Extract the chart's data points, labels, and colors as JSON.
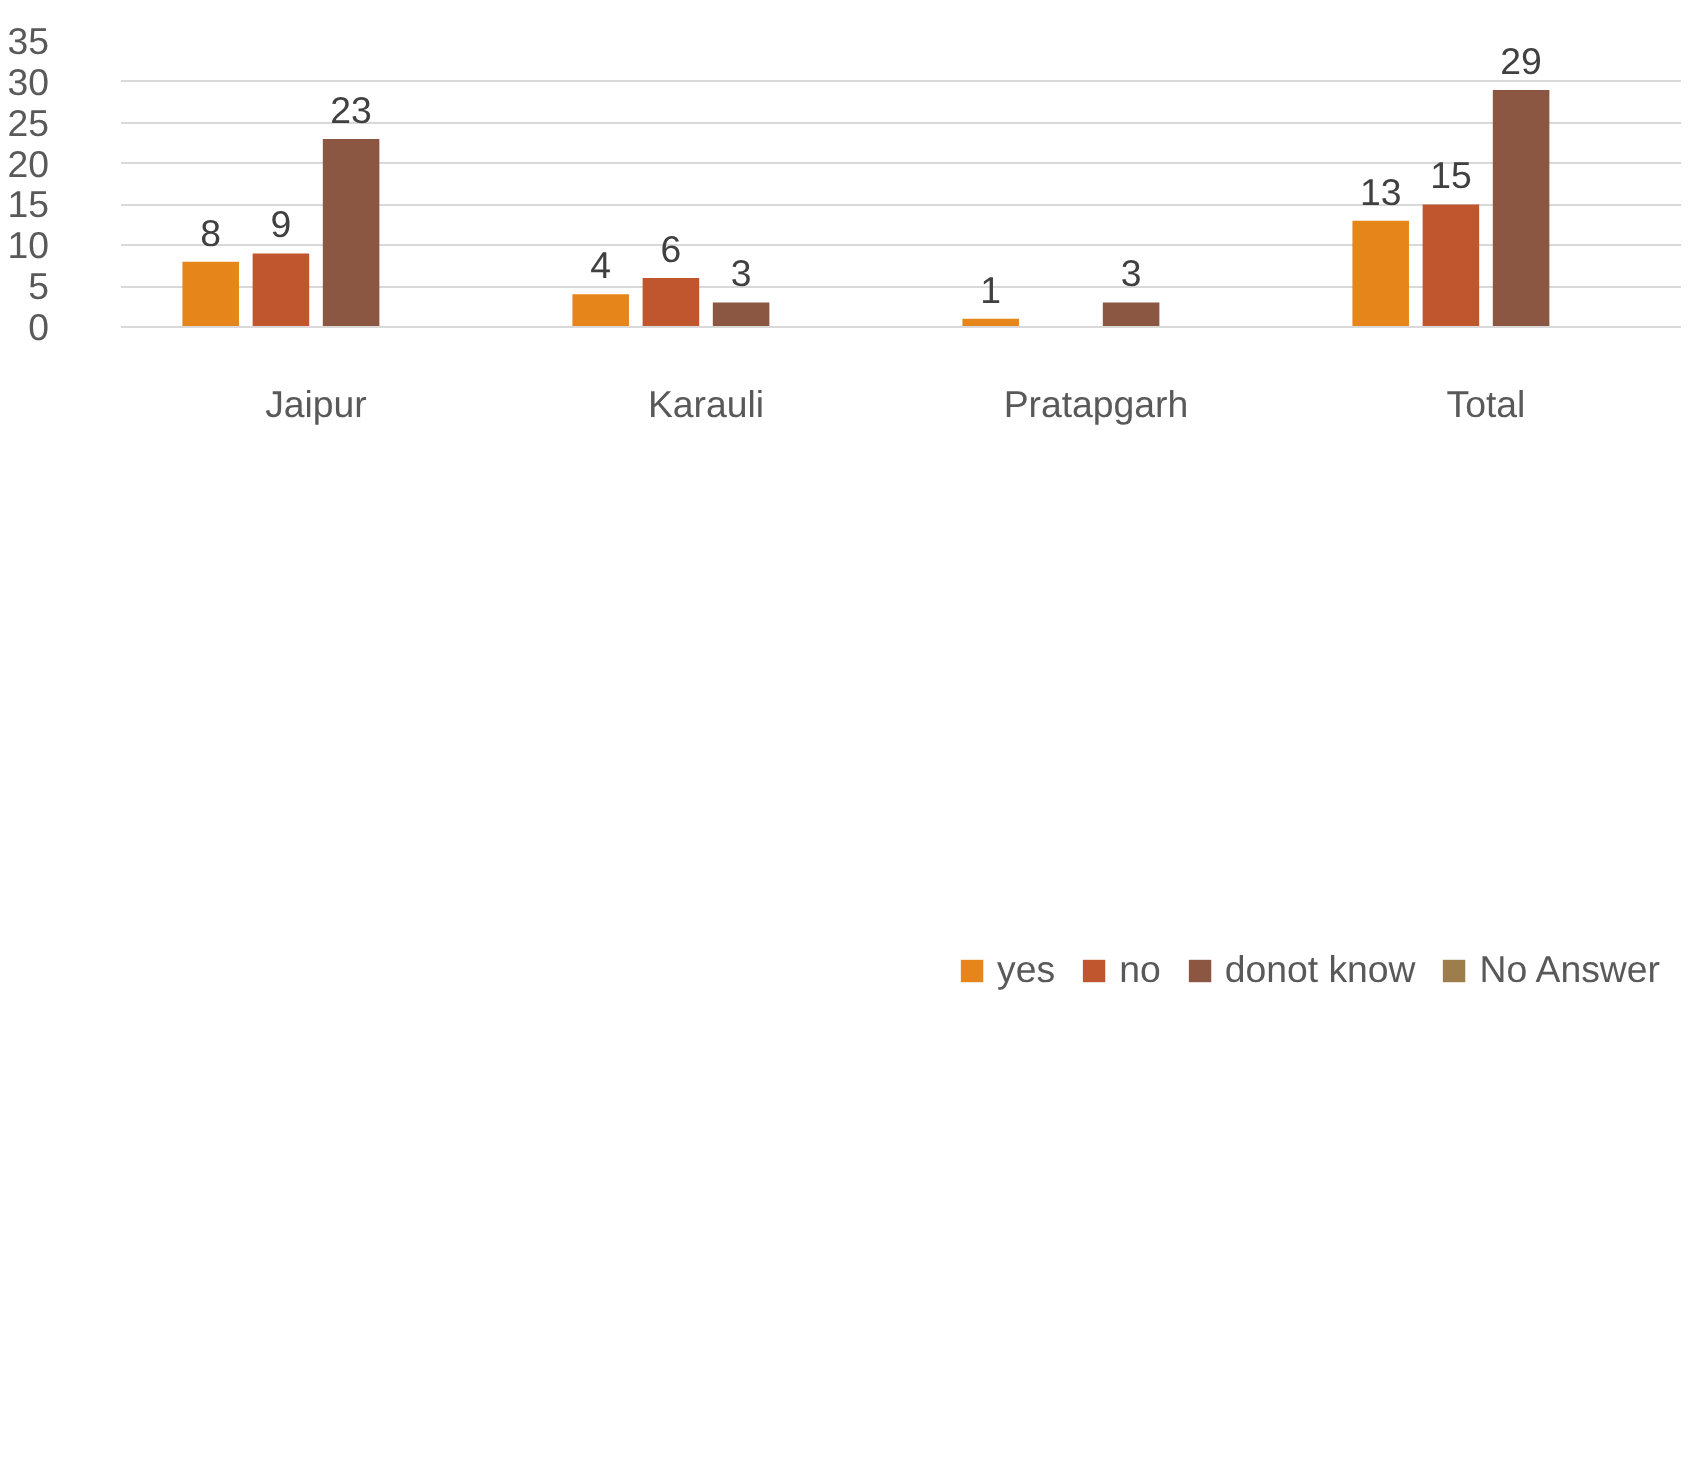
{
  "chart_data": {
    "type": "bar",
    "categories": [
      "Jaipur",
      "Karauli",
      "Pratapgarh",
      "Total"
    ],
    "series": [
      {
        "name": "yes",
        "color": "#e6861a",
        "values": [
          8,
          4,
          1,
          13
        ]
      },
      {
        "name": "no",
        "color": "#c0562d",
        "values": [
          9,
          6,
          null,
          15
        ]
      },
      {
        "name": "donot know",
        "color": "#8b5742",
        "values": [
          23,
          3,
          3,
          29
        ]
      },
      {
        "name": "No Answer",
        "color": "#9c7d4b",
        "values": [
          null,
          null,
          null,
          null
        ]
      }
    ],
    "ylim": [
      0,
      35
    ],
    "yticks": [
      0,
      5,
      10,
      15,
      20,
      25,
      30,
      35
    ],
    "grid": "y",
    "legend": "bottom",
    "data_labels": true
  }
}
